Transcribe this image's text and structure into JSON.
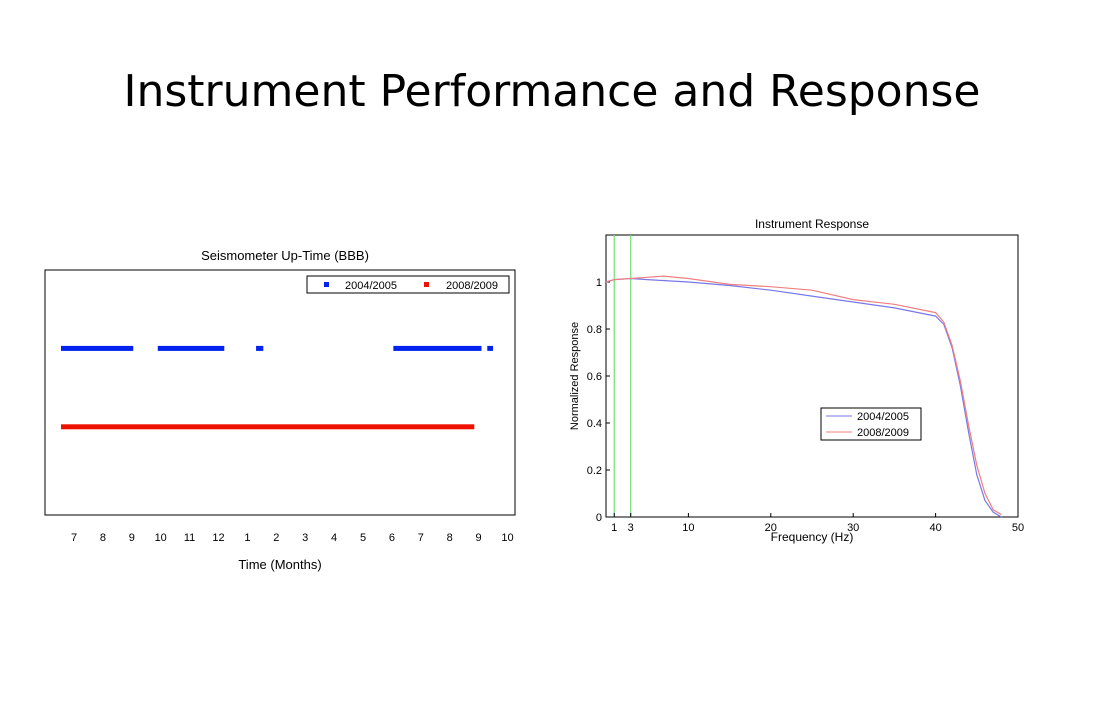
{
  "slide": {
    "title": "Instrument Performance and Response"
  },
  "chart_data": [
    {
      "type": "timeline",
      "title": "Seismometer Up-Time (BBB)",
      "xlabel": "Time (Months)",
      "ylabel": "",
      "tick_labels": [
        "7",
        "8",
        "9",
        "10",
        "11",
        "12",
        "1",
        "2",
        "3",
        "4",
        "5",
        "6",
        "7",
        "8",
        "9",
        "10"
      ],
      "x_unit": "months elapsed from first tick",
      "xlim": [
        -0.5,
        15.3
      ],
      "ylim": [
        0,
        1
      ],
      "legend": {
        "position": "top-right"
      },
      "series": [
        {
          "name": "2004/2005",
          "color": "#0022ee",
          "y": 0.68,
          "segments": [
            [
              -0.45,
              2.05
            ],
            [
              2.9,
              5.2
            ],
            [
              6.3,
              6.55
            ],
            [
              11.05,
              14.1
            ],
            [
              14.3,
              14.5
            ]
          ]
        },
        {
          "name": "2008/2009",
          "color": "#ee1100",
          "y": 0.36,
          "segments": [
            [
              -0.45,
              13.85
            ]
          ]
        }
      ]
    },
    {
      "type": "line",
      "title": "Instrument Response",
      "xlabel": "Frequency (Hz)",
      "ylabel": "Normalized Response",
      "xticks": [
        "1",
        "3",
        "10",
        "20",
        "30",
        "40",
        "50"
      ],
      "xtick_values": [
        1,
        3,
        10,
        20,
        30,
        40,
        50
      ],
      "yticks": [
        "0",
        "0.2",
        "0.4",
        "0.6",
        "0.8",
        "1"
      ],
      "ytick_values": [
        0,
        0.2,
        0.4,
        0.6,
        0.8,
        1
      ],
      "xlim": [
        0,
        50
      ],
      "ylim": [
        0,
        1.2
      ],
      "vlines": [
        1,
        3
      ],
      "vline_color": "#6fe06f",
      "legend": {
        "position": "right"
      },
      "series": [
        {
          "name": "2004/2005",
          "color": "#7878e8",
          "x": [
            0,
            1,
            3,
            5,
            10,
            15,
            20,
            25,
            30,
            35,
            40,
            41,
            42,
            43,
            44,
            45,
            46,
            47,
            48
          ],
          "y": [
            1.0,
            1.01,
            1.015,
            1.01,
            1.0,
            0.985,
            0.965,
            0.94,
            0.915,
            0.89,
            0.855,
            0.82,
            0.72,
            0.56,
            0.36,
            0.18,
            0.07,
            0.02,
            0.0
          ]
        },
        {
          "name": "2008/2009",
          "color": "#ee8080",
          "x": [
            0,
            1,
            3,
            5,
            7,
            10,
            15,
            20,
            25,
            30,
            35,
            40,
            41,
            42,
            43,
            44,
            45,
            46,
            47,
            48
          ],
          "y": [
            1.0,
            1.01,
            1.015,
            1.02,
            1.025,
            1.015,
            0.99,
            0.98,
            0.965,
            0.925,
            0.905,
            0.87,
            0.83,
            0.73,
            0.58,
            0.39,
            0.22,
            0.1,
            0.03,
            0.01
          ]
        }
      ]
    }
  ]
}
